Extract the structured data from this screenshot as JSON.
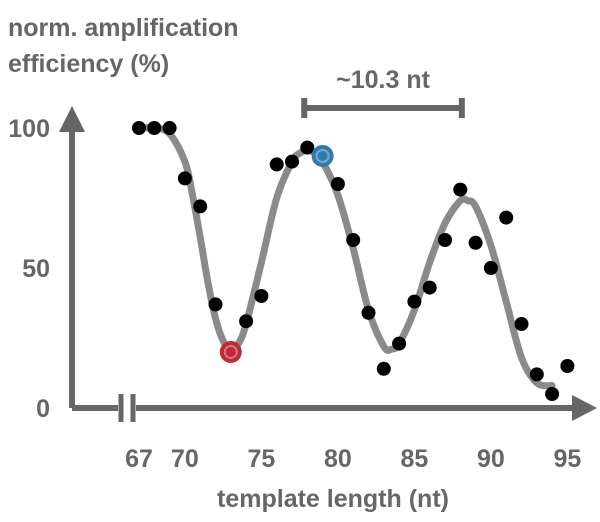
{
  "chart_data": {
    "type": "scatter",
    "ylabel_lines": [
      "norm. amplification",
      "efficiency (%)"
    ],
    "xlabel": "template length (nt)",
    "xlim": [
      66,
      96
    ],
    "ylim": [
      0,
      100
    ],
    "x_ticks": [
      {
        "value": 67,
        "label": "67"
      },
      {
        "value": 70,
        "label": "70"
      },
      {
        "value": 75,
        "label": "75"
      },
      {
        "value": 80,
        "label": "80"
      },
      {
        "value": 85,
        "label": "85"
      },
      {
        "value": 90,
        "label": "90"
      },
      {
        "value": 95,
        "label": "95"
      }
    ],
    "y_ticks": [
      {
        "value": 0,
        "label": "0"
      },
      {
        "value": 50,
        "label": "50"
      },
      {
        "value": 100,
        "label": "100"
      }
    ],
    "axis_break": true,
    "grid": false,
    "period_annotation": {
      "label": "~10.3 nt",
      "x_start": 77.8,
      "x_end": 88.1
    },
    "points": [
      {
        "x": 67,
        "y": 100
      },
      {
        "x": 68,
        "y": 100
      },
      {
        "x": 69,
        "y": 100
      },
      {
        "x": 70,
        "y": 82
      },
      {
        "x": 71,
        "y": 72
      },
      {
        "x": 72,
        "y": 37
      },
      {
        "x": 74,
        "y": 31
      },
      {
        "x": 75,
        "y": 40
      },
      {
        "x": 76,
        "y": 87
      },
      {
        "x": 77,
        "y": 88
      },
      {
        "x": 78,
        "y": 93
      },
      {
        "x": 80,
        "y": 80
      },
      {
        "x": 81,
        "y": 60
      },
      {
        "x": 82,
        "y": 34
      },
      {
        "x": 83,
        "y": 14
      },
      {
        "x": 84,
        "y": 23
      },
      {
        "x": 85,
        "y": 38
      },
      {
        "x": 86,
        "y": 43
      },
      {
        "x": 87,
        "y": 60
      },
      {
        "x": 88,
        "y": 78
      },
      {
        "x": 89,
        "y": 59
      },
      {
        "x": 90,
        "y": 50
      },
      {
        "x": 91,
        "y": 68
      },
      {
        "x": 92,
        "y": 30
      },
      {
        "x": 93,
        "y": 12
      },
      {
        "x": 94,
        "y": 5
      },
      {
        "x": 95,
        "y": 15
      }
    ],
    "highlight_points": [
      {
        "x": 73,
        "y": 20,
        "color": "#c1293b"
      },
      {
        "x": 79,
        "y": 90,
        "color": "#2e7bb0"
      }
    ],
    "fit_curve": {
      "color": "#8a8a8a",
      "x": [
        67,
        68,
        69,
        70,
        70.5,
        71,
        71.5,
        72,
        72.5,
        73,
        73.5,
        74,
        75,
        76,
        77,
        77.5,
        78,
        78.5,
        79,
        80,
        81,
        82,
        83,
        83.5,
        84,
        85,
        86,
        87,
        88,
        88.5,
        89,
        90,
        91,
        92,
        93,
        94
      ],
      "y": [
        100,
        100,
        98,
        88,
        76,
        61,
        45,
        32,
        24,
        21,
        23,
        30,
        52,
        75,
        88,
        91,
        92,
        91,
        88,
        76,
        57,
        35,
        22,
        21,
        23,
        35,
        52,
        66,
        74,
        74,
        72,
        58,
        38,
        18,
        9,
        8
      ]
    },
    "colors": {
      "axis": "#666666",
      "point": "#000000",
      "text": "#666666"
    }
  }
}
